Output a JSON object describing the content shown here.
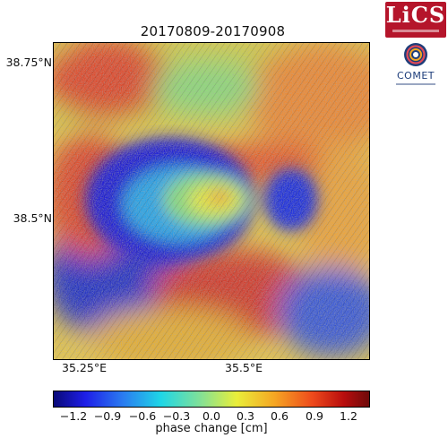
{
  "title": "20170809-20170908",
  "map": {
    "lat_ticks": [
      "38.75°N",
      "38.5°N"
    ],
    "lon_ticks": [
      "35.25°E",
      "35.5°E"
    ]
  },
  "colorbar": {
    "label": "phase change [cm]",
    "ticks": [
      "−1.2",
      "−0.9",
      "−0.6",
      "−0.3",
      "0.0",
      "0.3",
      "0.6",
      "0.9",
      "1.2"
    ],
    "colors": [
      "#0a0a78",
      "#1e1ee8",
      "#1fd6e6",
      "#e9ee3a",
      "#ee4a1c",
      "#6e0a0a"
    ]
  },
  "logos": {
    "lics": "LiCS",
    "comet": "COMET"
  }
}
